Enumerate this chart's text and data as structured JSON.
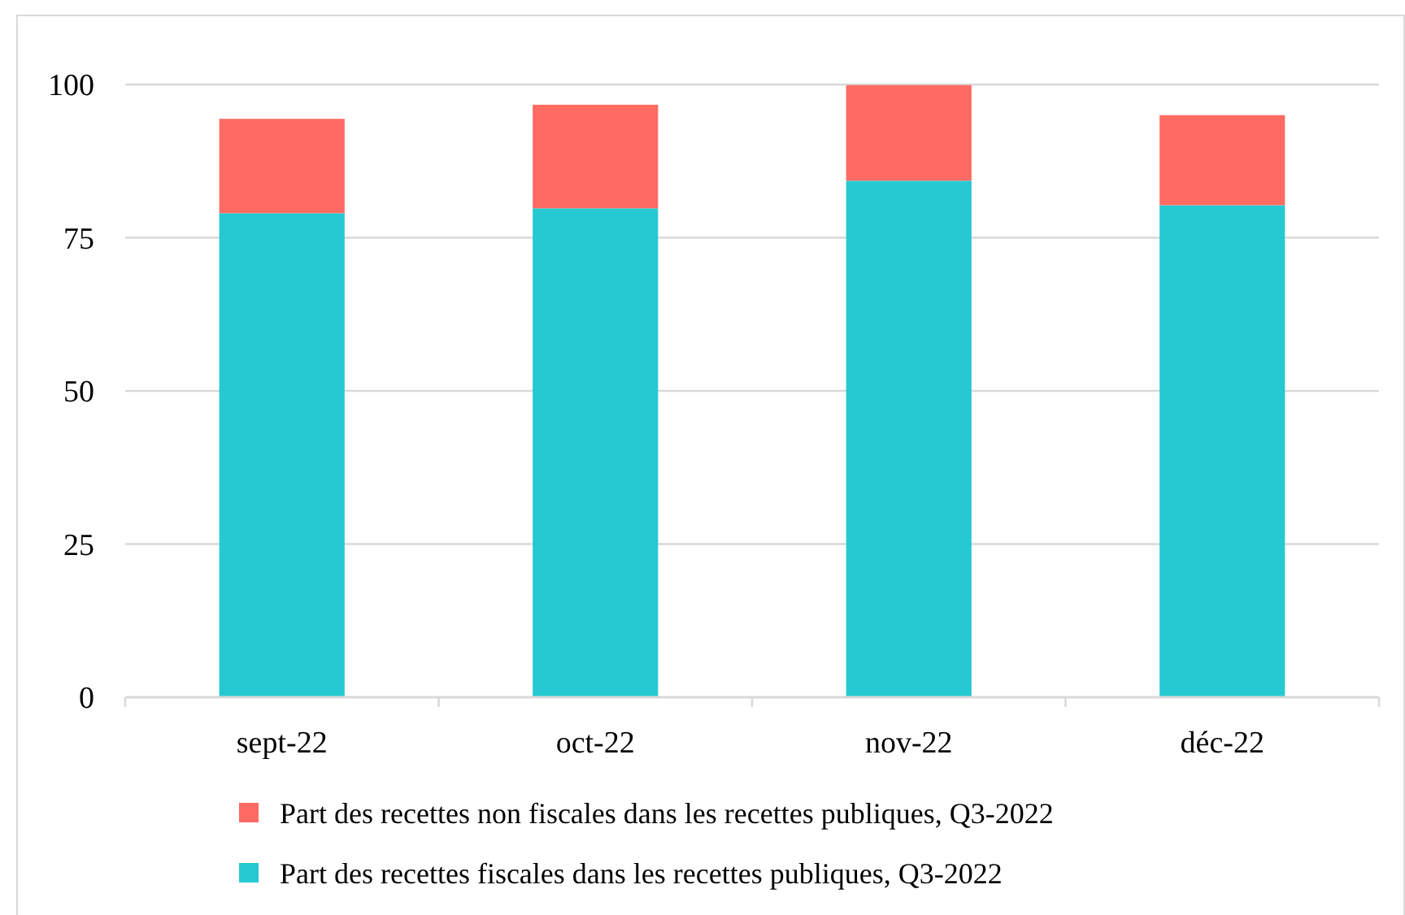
{
  "chart_data": {
    "type": "bar",
    "categories": [
      "sept-22",
      "oct-22",
      "nov-22",
      "déc-22"
    ],
    "stacked": true,
    "series": [
      {
        "name": "Part des recettes fiscales dans les recettes publiques, Q3-2022",
        "color": "#26c9d2",
        "values": [
          79,
          79.8,
          84.3,
          80.3
        ]
      },
      {
        "name": "Part des recettes non fiscales dans les recettes publiques, Q3-2022",
        "color": "#ff6b63",
        "values": [
          15.4,
          16.9,
          15.6,
          14.7
        ]
      }
    ],
    "ylim": [
      0,
      100
    ],
    "yticks": [
      0,
      25,
      50,
      75,
      100
    ],
    "grid": "y",
    "legend": "bottom"
  }
}
